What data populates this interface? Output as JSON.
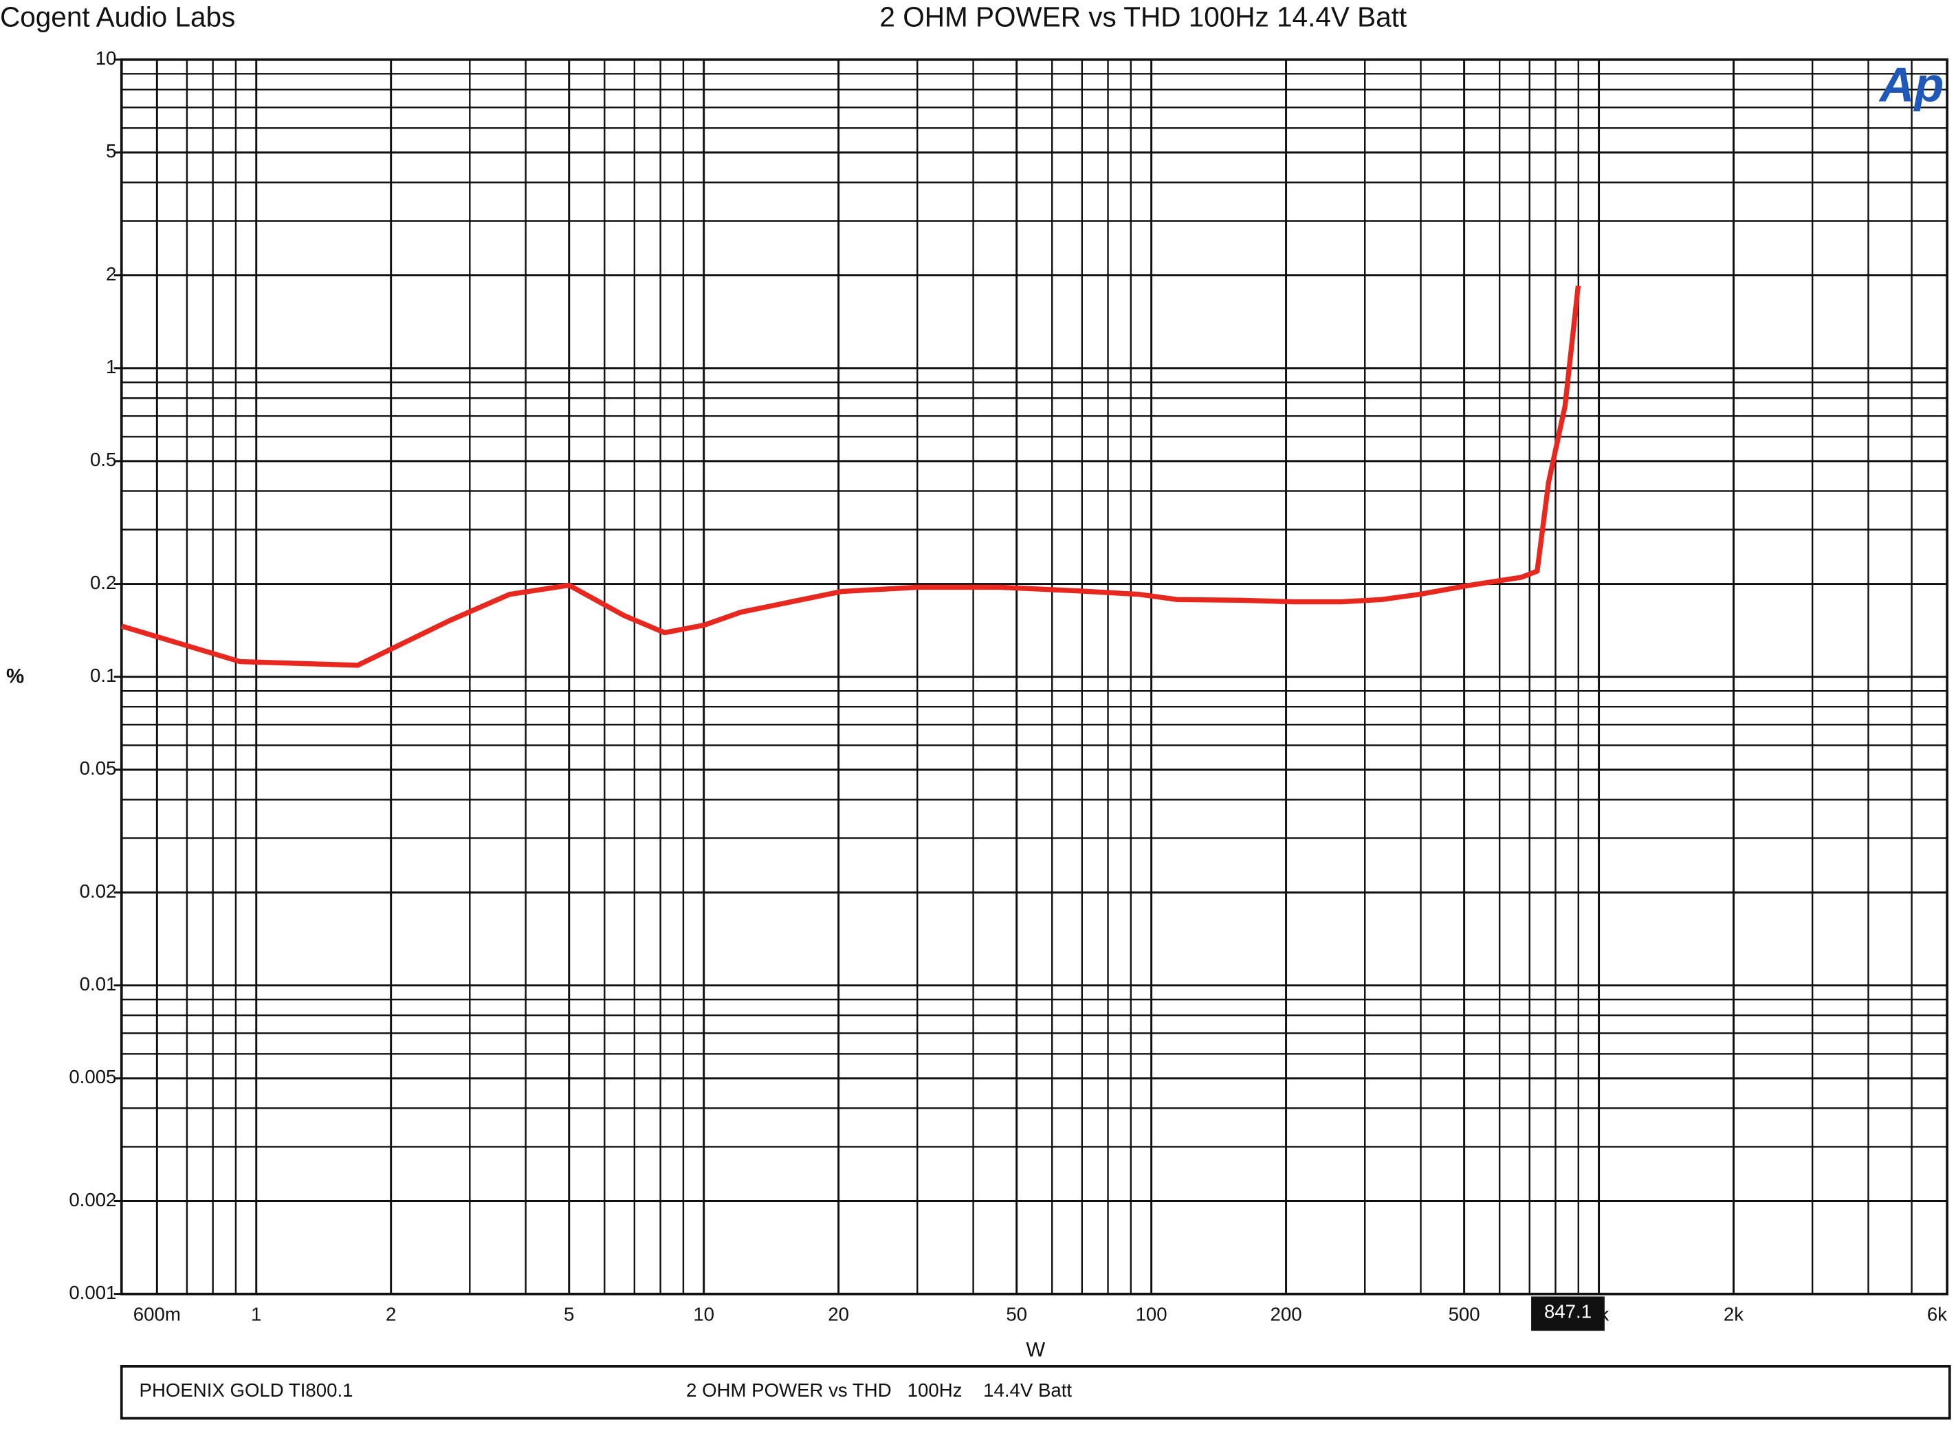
{
  "chart_data": {
    "type": "line",
    "header_left": "Cogent Audio Labs",
    "title": "2 OHM POWER vs THD  100Hz  14.4V Batt",
    "logo": "Ap",
    "xlabel": "W",
    "ylabel": "%",
    "log_x": true,
    "log_y": true,
    "grid": true,
    "color": "#e8281e",
    "xlim": [
      0.5,
      6000
    ],
    "ylim": [
      0.001,
      10
    ],
    "xticks": [
      {
        "value": 0.6,
        "label": "600m"
      },
      1,
      2,
      5,
      10,
      20,
      50,
      100,
      200,
      500,
      {
        "value": 1000,
        "label": "1k"
      },
      {
        "value": 2000,
        "label": "2k"
      },
      {
        "value": 6000,
        "label": "6k"
      }
    ],
    "yticks": [
      10,
      5,
      2,
      1,
      0.5,
      0.2,
      0.1,
      0.05,
      0.02,
      0.01,
      0.005,
      0.002,
      0.001
    ],
    "x": [
      0.5,
      0.92,
      1.685,
      2.7,
      3.68,
      5.0,
      6.63,
      8.17,
      10,
      12.1,
      20.3,
      30,
      46,
      68,
      94,
      114,
      158,
      207,
      266,
      327,
      397,
      515,
      670,
      728,
      772,
      840,
      899
    ],
    "values": [
      0.146,
      0.112,
      0.109,
      0.152,
      0.185,
      0.198,
      0.158,
      0.139,
      0.147,
      0.162,
      0.189,
      0.195,
      0.195,
      0.19,
      0.185,
      0.178,
      0.177,
      0.175,
      0.175,
      0.178,
      0.185,
      0.198,
      0.21,
      0.22,
      0.427,
      0.753,
      1.85
    ],
    "cursor_x": 847.1,
    "footer": [
      "PHOENIX GOLD TI800.1",
      "2 OHM POWER vs THD   100Hz    14.4V Batt"
    ]
  }
}
